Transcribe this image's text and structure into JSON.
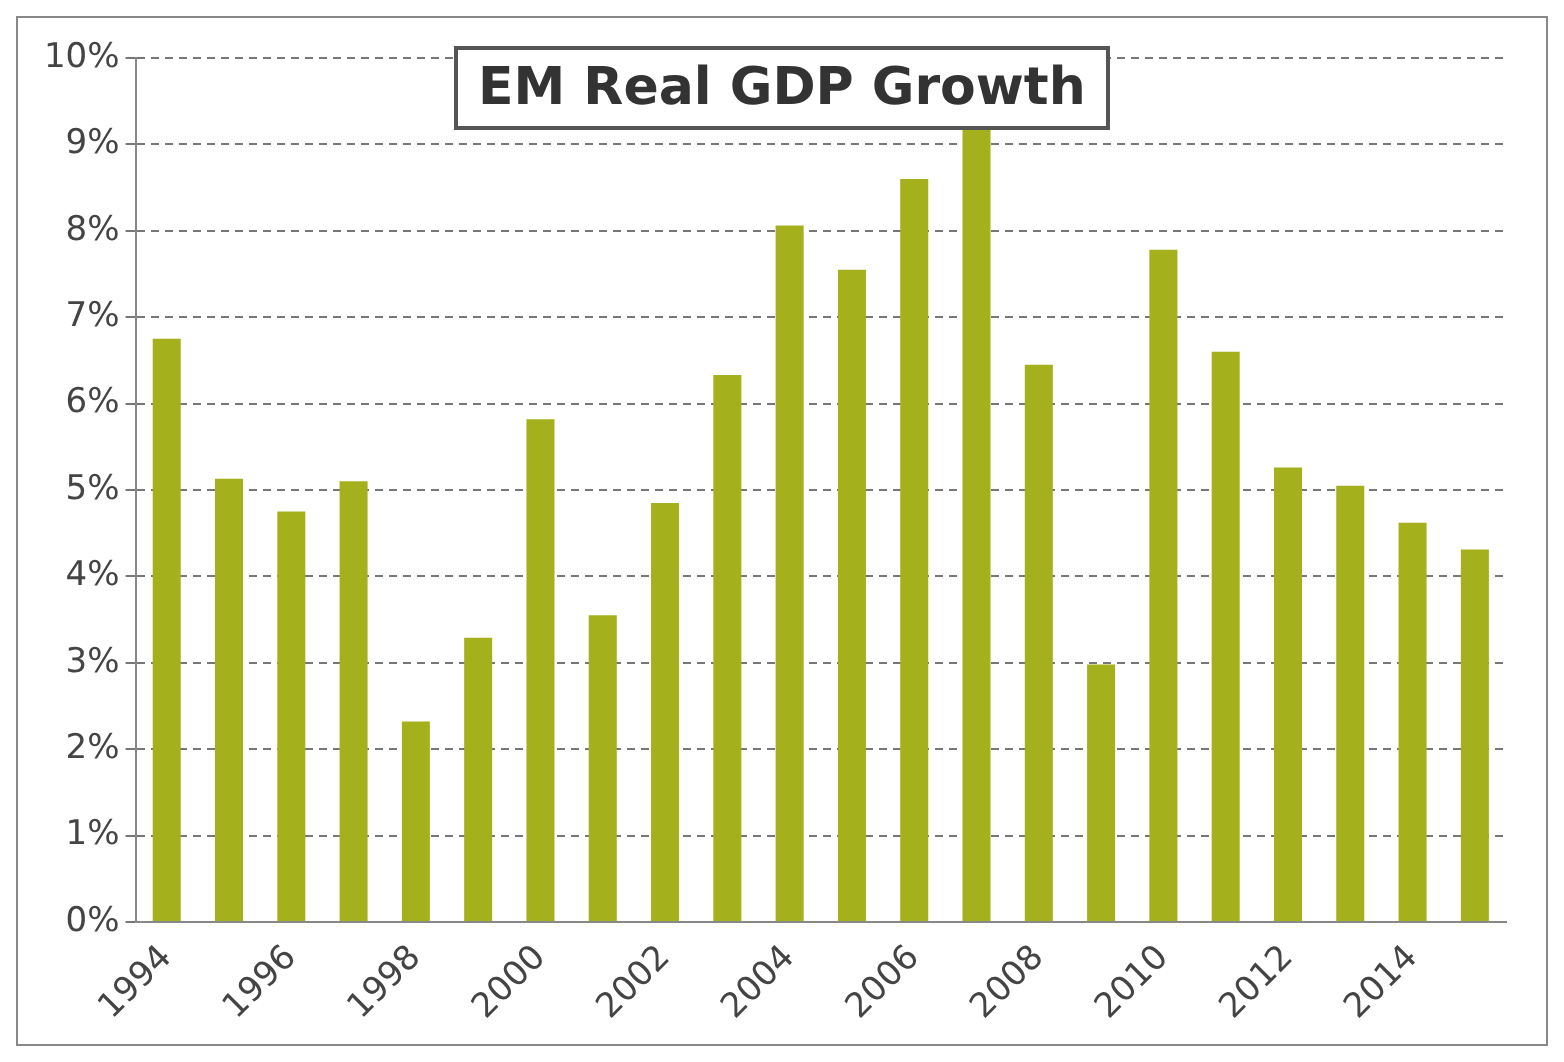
{
  "chart_data": {
    "type": "bar",
    "title": "EM Real GDP Growth",
    "categories": [
      "1994",
      null,
      "1996",
      null,
      "1998",
      null,
      "2000",
      null,
      "2002",
      null,
      "2004",
      null,
      "2006",
      null,
      "2008",
      null,
      "2010",
      null,
      "2012",
      null,
      "2014",
      null
    ],
    "values": [
      6.75,
      5.13,
      4.75,
      5.1,
      2.32,
      3.29,
      5.82,
      3.55,
      4.85,
      6.33,
      8.06,
      7.55,
      8.6,
      9.18,
      6.45,
      2.98,
      7.78,
      6.6,
      5.26,
      5.05,
      4.62,
      4.31
    ],
    "color": "#a4b11c",
    "ylim": [
      0,
      10
    ],
    "yticks": [
      {
        "value": 0,
        "label": "0%"
      },
      {
        "value": 1,
        "label": "1%"
      },
      {
        "value": 2,
        "label": "2%"
      },
      {
        "value": 3,
        "label": "3%"
      },
      {
        "value": 4,
        "label": "4%"
      },
      {
        "value": 5,
        "label": "5%"
      },
      {
        "value": 6,
        "label": "6%"
      },
      {
        "value": 7,
        "label": "7%"
      },
      {
        "value": 8,
        "label": "8%"
      },
      {
        "value": 9,
        "label": "9%"
      },
      {
        "value": 10,
        "label": "10%"
      }
    ],
    "grid": "y"
  }
}
